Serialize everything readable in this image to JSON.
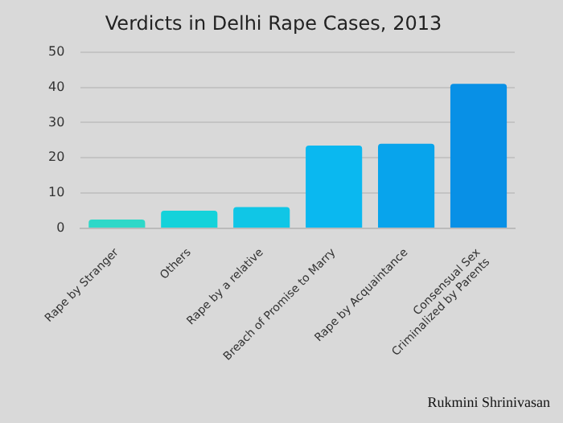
{
  "chart_data": {
    "type": "bar",
    "title": "Verdicts in Delhi Rape Cases, 2013",
    "categories": [
      "Rape by Stranger",
      "Others",
      "Rape by a relative",
      "Breach of Promise to Marry",
      "Rape by Acquaintance",
      "Consensual Sex\nCriminalized by Parents"
    ],
    "values": [
      2.5,
      5,
      6,
      23.5,
      24,
      41
    ],
    "colors": [
      "#2ed8c8",
      "#14d2da",
      "#10c6e6",
      "#0ab8f0",
      "#08a4ec",
      "#0890e6"
    ],
    "ylim": [
      0,
      50
    ],
    "yticks": [
      0,
      10,
      20,
      30,
      40,
      50
    ],
    "grid": "y",
    "annotations": [
      "Rukmini Shrinivasan"
    ]
  }
}
